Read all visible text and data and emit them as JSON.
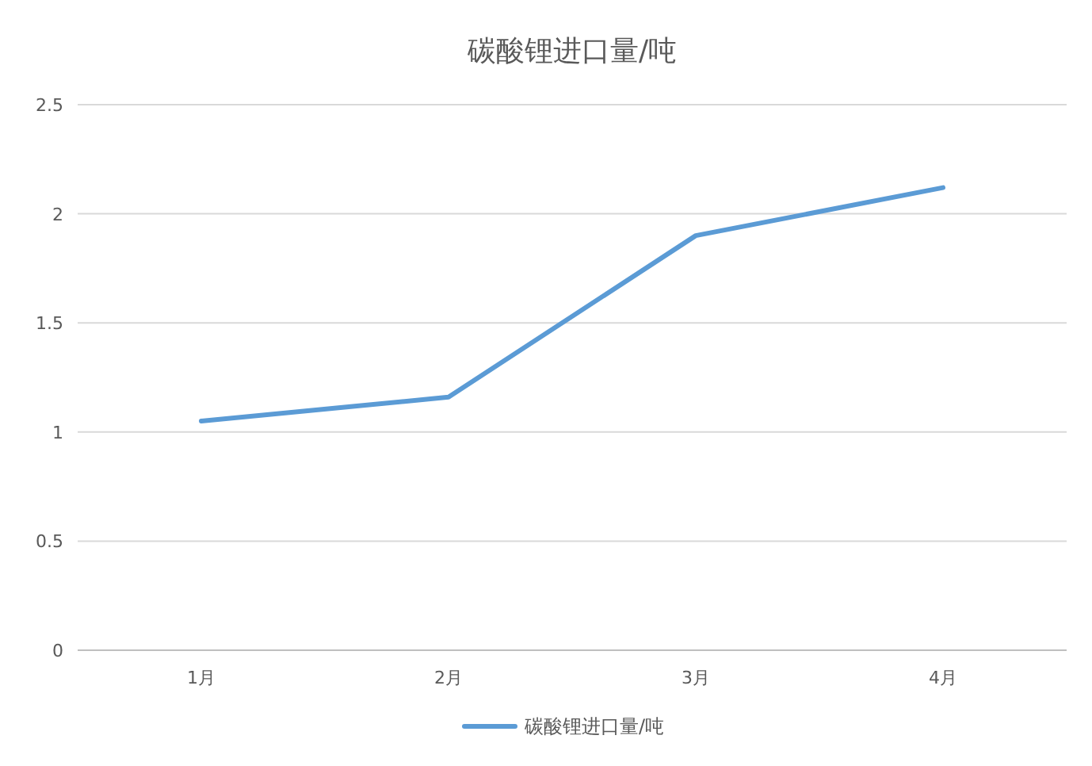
{
  "chart_data": {
    "type": "line",
    "title": "碳酸锂进口量/吨",
    "categories": [
      "1月",
      "2月",
      "3月",
      "4月"
    ],
    "series": [
      {
        "name": "碳酸锂进口量/吨",
        "color": "#5b9bd5",
        "values": [
          1.05,
          1.16,
          1.9,
          2.12
        ]
      }
    ],
    "ylim": [
      0,
      2.5
    ],
    "yticks": [
      0,
      0.5,
      1,
      1.5,
      2,
      2.5
    ],
    "grid": "y",
    "legend": "bottom"
  }
}
